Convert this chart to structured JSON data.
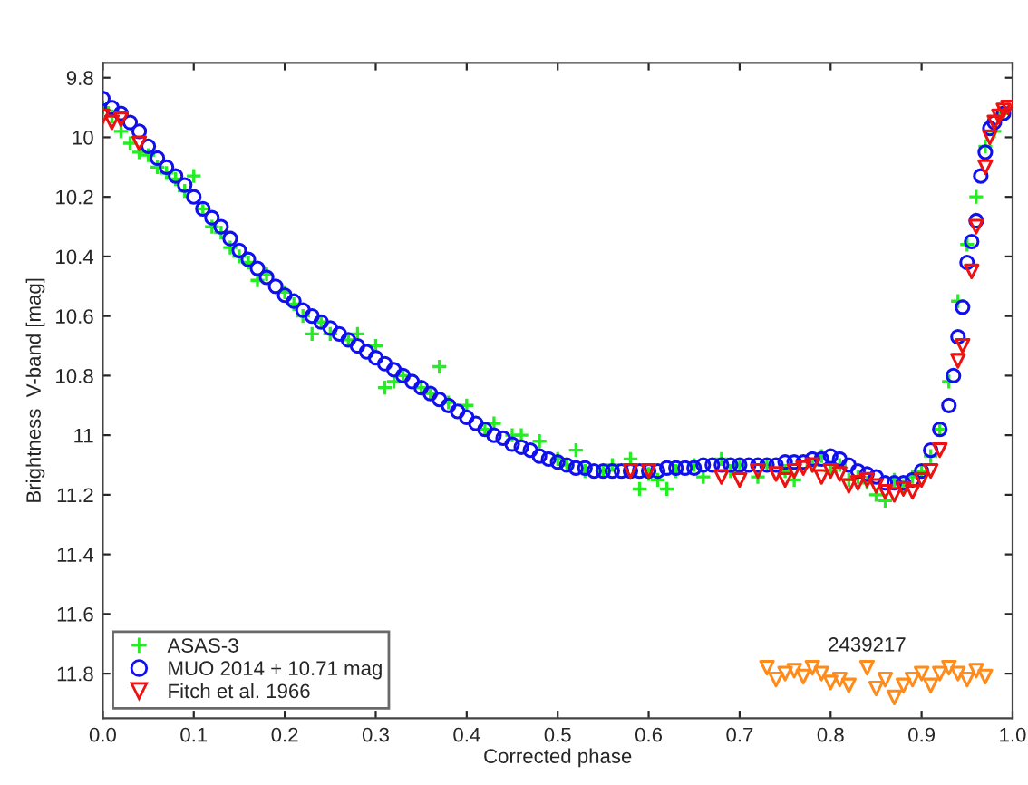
{
  "chart_data": {
    "type": "scatter",
    "xlabel": "Corrected phase",
    "ylabel": "Brightness  V-band [mag]",
    "xlim": [
      0,
      1
    ],
    "ylim": [
      11.95,
      9.75
    ],
    "xticks": [
      {
        "value": 0,
        "label": "0.0"
      },
      0.1,
      0.2,
      0.3,
      0.4,
      0.5,
      0.6,
      0.7,
      0.8,
      0.9,
      {
        "value": 1,
        "label": "1.0"
      }
    ],
    "yticks": [
      9.8,
      10,
      10.2,
      10.4,
      10.6,
      10.8,
      11,
      11.2,
      11.4,
      11.6,
      11.8
    ],
    "grid": false,
    "legend": "bottom left",
    "annotations": [
      "2439217"
    ],
    "series": [
      {
        "name": "ASAS-3",
        "color": "#22ee22",
        "marker": "cross",
        "x": [
          0.0,
          0.01,
          0.02,
          0.03,
          0.04,
          0.05,
          0.06,
          0.07,
          0.08,
          0.09,
          0.1,
          0.11,
          0.12,
          0.13,
          0.14,
          0.15,
          0.16,
          0.17,
          0.18,
          0.2,
          0.21,
          0.22,
          0.23,
          0.24,
          0.25,
          0.27,
          0.28,
          0.3,
          0.31,
          0.32,
          0.33,
          0.35,
          0.36,
          0.37,
          0.38,
          0.4,
          0.42,
          0.43,
          0.45,
          0.46,
          0.48,
          0.5,
          0.51,
          0.52,
          0.53,
          0.55,
          0.56,
          0.58,
          0.59,
          0.6,
          0.61,
          0.62,
          0.63,
          0.65,
          0.66,
          0.68,
          0.69,
          0.7,
          0.72,
          0.73,
          0.75,
          0.76,
          0.78,
          0.79,
          0.8,
          0.81,
          0.82,
          0.83,
          0.84,
          0.85,
          0.86,
          0.87,
          0.88,
          0.89,
          0.9,
          0.91,
          0.92,
          0.93,
          0.94,
          0.95,
          0.96,
          0.97,
          0.98,
          0.99
        ],
        "values": [
          9.9,
          9.93,
          9.98,
          10.02,
          10.05,
          10.06,
          10.1,
          10.12,
          10.14,
          10.18,
          10.13,
          10.24,
          10.3,
          10.32,
          10.37,
          10.4,
          10.42,
          10.48,
          10.46,
          10.52,
          10.56,
          10.6,
          10.66,
          10.62,
          10.66,
          10.68,
          10.66,
          10.7,
          10.84,
          10.82,
          10.8,
          10.84,
          10.86,
          10.77,
          10.89,
          10.9,
          10.98,
          10.96,
          11.0,
          11.0,
          11.02,
          11.08,
          11.1,
          11.05,
          11.12,
          11.12,
          11.1,
          11.08,
          11.18,
          11.13,
          11.15,
          11.18,
          11.12,
          11.1,
          11.14,
          11.08,
          11.12,
          11.1,
          11.14,
          11.1,
          11.12,
          11.15,
          11.1,
          11.07,
          11.12,
          11.1,
          11.15,
          11.14,
          11.16,
          11.2,
          11.22,
          11.15,
          11.17,
          11.14,
          11.12,
          11.07,
          10.98,
          10.82,
          10.55,
          10.36,
          10.2,
          10.03,
          9.98,
          9.92
        ]
      },
      {
        "name": "MUO 2014 + 10.71 mag",
        "color": "#1010ee",
        "marker": "circle",
        "x": [
          0.0,
          0.01,
          0.02,
          0.03,
          0.04,
          0.05,
          0.06,
          0.07,
          0.08,
          0.09,
          0.1,
          0.11,
          0.12,
          0.13,
          0.14,
          0.15,
          0.16,
          0.17,
          0.18,
          0.19,
          0.2,
          0.21,
          0.22,
          0.23,
          0.24,
          0.25,
          0.26,
          0.27,
          0.28,
          0.29,
          0.3,
          0.31,
          0.32,
          0.33,
          0.34,
          0.35,
          0.36,
          0.37,
          0.38,
          0.39,
          0.4,
          0.41,
          0.42,
          0.43,
          0.44,
          0.45,
          0.46,
          0.47,
          0.48,
          0.49,
          0.5,
          0.51,
          0.52,
          0.53,
          0.54,
          0.55,
          0.56,
          0.57,
          0.58,
          0.59,
          0.6,
          0.61,
          0.62,
          0.63,
          0.64,
          0.65,
          0.66,
          0.67,
          0.68,
          0.69,
          0.7,
          0.71,
          0.72,
          0.73,
          0.74,
          0.75,
          0.76,
          0.77,
          0.78,
          0.79,
          0.8,
          0.81,
          0.82,
          0.83,
          0.84,
          0.85,
          0.86,
          0.87,
          0.88,
          0.89,
          0.9,
          0.91,
          0.92,
          0.93,
          0.935,
          0.94,
          0.945,
          0.95,
          0.955,
          0.96,
          0.965,
          0.97,
          0.975,
          0.98,
          0.99
        ],
        "values": [
          9.87,
          9.9,
          9.92,
          9.95,
          9.98,
          10.03,
          10.07,
          10.1,
          10.13,
          10.16,
          10.2,
          10.24,
          10.27,
          10.3,
          10.34,
          10.38,
          10.41,
          10.44,
          10.47,
          10.5,
          10.53,
          10.55,
          10.58,
          10.6,
          10.62,
          10.64,
          10.66,
          10.68,
          10.7,
          10.72,
          10.74,
          10.76,
          10.78,
          10.8,
          10.82,
          10.84,
          10.86,
          10.88,
          10.9,
          10.92,
          10.94,
          10.96,
          10.98,
          11.0,
          11.01,
          11.03,
          11.04,
          11.05,
          11.07,
          11.08,
          11.09,
          11.1,
          11.11,
          11.11,
          11.12,
          11.12,
          11.12,
          11.12,
          11.12,
          11.12,
          11.12,
          11.12,
          11.11,
          11.11,
          11.11,
          11.11,
          11.1,
          11.1,
          11.1,
          11.1,
          11.1,
          11.1,
          11.1,
          11.1,
          11.1,
          11.09,
          11.09,
          11.09,
          11.08,
          11.08,
          11.07,
          11.08,
          11.1,
          11.12,
          11.13,
          11.14,
          11.16,
          11.16,
          11.16,
          11.15,
          11.12,
          11.05,
          10.98,
          10.9,
          10.8,
          10.67,
          10.57,
          10.42,
          10.35,
          10.28,
          10.13,
          10.05,
          9.97,
          9.95,
          9.92
        ]
      },
      {
        "name": "Fitch et al. 1966",
        "color": "#ee1111",
        "marker": "triangle",
        "x": [
          0.0,
          0.01,
          0.02,
          0.04,
          0.58,
          0.6,
          0.68,
          0.7,
          0.72,
          0.74,
          0.75,
          0.76,
          0.77,
          0.78,
          0.79,
          0.8,
          0.81,
          0.82,
          0.83,
          0.84,
          0.85,
          0.86,
          0.87,
          0.88,
          0.89,
          0.9,
          0.91,
          0.92,
          0.94,
          0.945,
          0.955,
          0.96,
          0.97,
          0.975,
          0.98,
          0.985,
          0.99,
          0.995
        ],
        "values": [
          9.93,
          9.95,
          9.94,
          10.02,
          11.12,
          11.12,
          11.14,
          11.15,
          11.12,
          11.13,
          11.15,
          11.12,
          11.11,
          11.1,
          11.14,
          11.12,
          11.13,
          11.17,
          11.16,
          11.15,
          11.17,
          11.19,
          11.2,
          11.18,
          11.19,
          11.15,
          11.12,
          11.05,
          10.75,
          10.7,
          10.45,
          10.3,
          10.1,
          10.0,
          9.95,
          9.93,
          9.91,
          9.9
        ]
      },
      {
        "color": "#ff8c1a",
        "marker": "triangle",
        "x": [
          0.73,
          0.74,
          0.75,
          0.76,
          0.77,
          0.78,
          0.79,
          0.8,
          0.81,
          0.82,
          0.84,
          0.85,
          0.86,
          0.87,
          0.88,
          0.89,
          0.9,
          0.91,
          0.92,
          0.93,
          0.94,
          0.95,
          0.96,
          0.97
        ],
        "values": [
          11.78,
          11.82,
          11.8,
          11.79,
          11.81,
          11.78,
          11.8,
          11.83,
          11.82,
          11.84,
          11.78,
          11.85,
          11.82,
          11.88,
          11.84,
          11.82,
          11.8,
          11.84,
          11.8,
          11.78,
          11.8,
          11.82,
          11.79,
          11.81
        ]
      }
    ]
  }
}
